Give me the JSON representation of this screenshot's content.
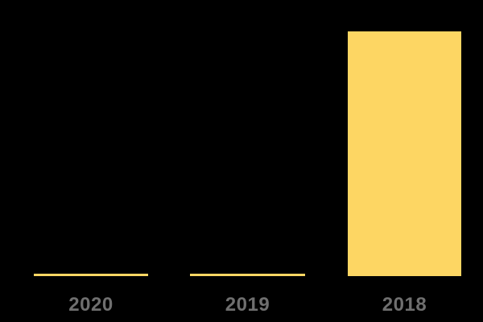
{
  "chart_data": {
    "type": "bar",
    "title": "",
    "xlabel": "",
    "ylabel": "",
    "categories": [
      "2020",
      "2019",
      "2018"
    ],
    "values": [
      1,
      1,
      100
    ],
    "ylim": [
      0,
      100
    ],
    "grid": false,
    "legend": false,
    "axes_visible": false,
    "value_labels_visible": false,
    "bar_color": "#FDD663",
    "label_color": "#6F6F6F",
    "background_color": "#000000"
  }
}
